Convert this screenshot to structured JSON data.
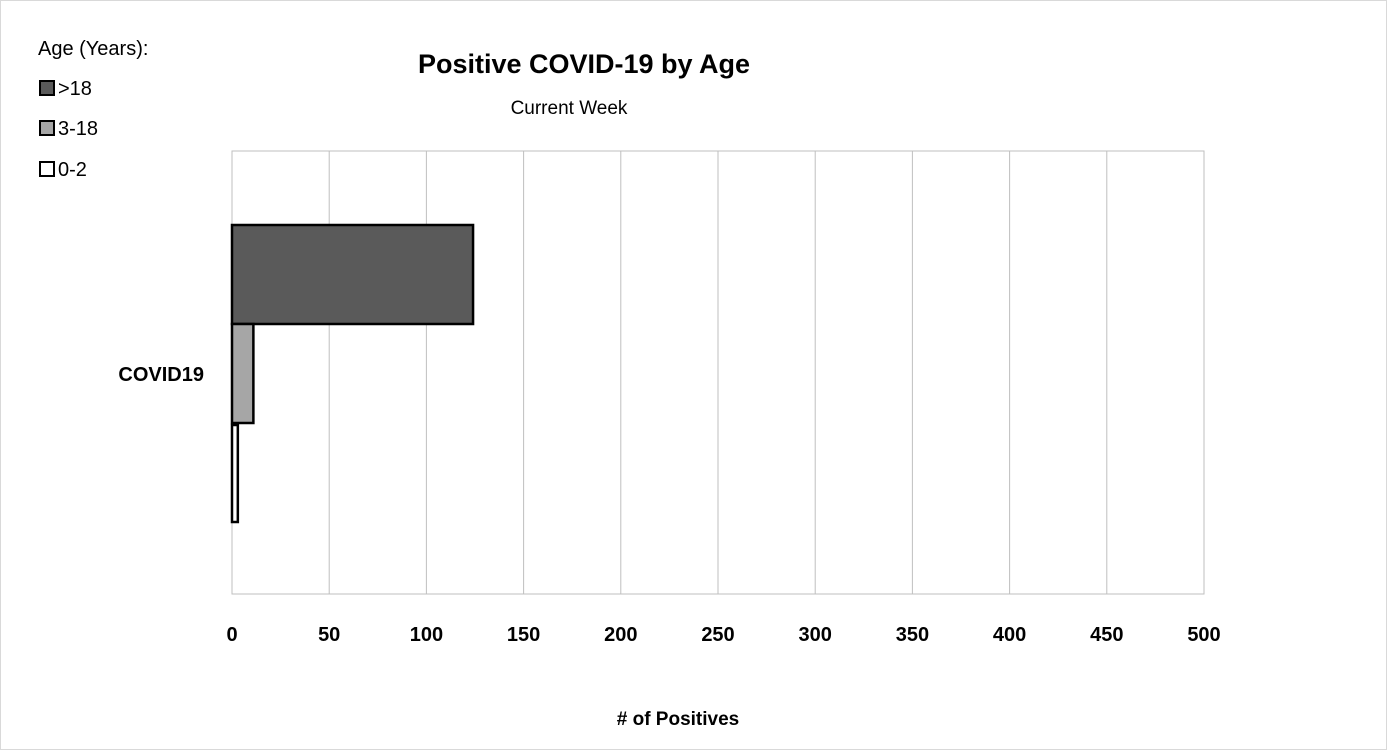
{
  "chart_data": {
    "type": "bar",
    "orientation": "horizontal",
    "title": "Positive COVID-19 by Age",
    "subtitle": "Current Week",
    "xlabel": "# of Positives",
    "ylabel": "",
    "categories": [
      "COVID19"
    ],
    "xlim": [
      0,
      500
    ],
    "x_ticks": [
      0,
      50,
      100,
      150,
      200,
      250,
      300,
      350,
      400,
      450,
      500
    ],
    "grid": true,
    "legend_title": "Age (Years):",
    "legend_position": "top-left",
    "series": [
      {
        "name": ">18",
        "values": [
          124
        ],
        "color": "#5a5a5a"
      },
      {
        "name": "3-18",
        "values": [
          11
        ],
        "color": "#a6a6a6"
      },
      {
        "name": "0-2",
        "values": [
          3
        ],
        "color": "#ffffff"
      }
    ]
  }
}
